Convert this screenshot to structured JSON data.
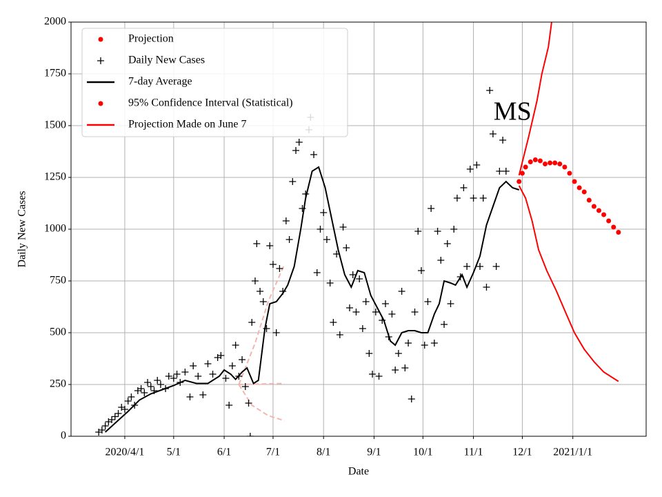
{
  "chart_data": {
    "type": "scatter",
    "xlabel": "Date",
    "ylabel": "Daily New Cases",
    "xlim": [
      "2020-02-28",
      "2021-02-15"
    ],
    "ylim": [
      0,
      2000
    ],
    "yticks": [
      0,
      250,
      500,
      750,
      1000,
      1250,
      1500,
      1750,
      2000
    ],
    "xticks": [
      {
        "value": "2020-04-01",
        "label": "2020/4/1"
      },
      {
        "value": "2020-05-01",
        "label": "5/1"
      },
      {
        "value": "2020-06-01",
        "label": "6/1"
      },
      {
        "value": "2020-07-01",
        "label": "7/1"
      },
      {
        "value": "2020-08-01",
        "label": "8/1"
      },
      {
        "value": "2020-09-01",
        "label": "9/1"
      },
      {
        "value": "2020-10-01",
        "label": "10/1"
      },
      {
        "value": "2020-11-01",
        "label": "11/1"
      },
      {
        "value": "2020-12-01",
        "label": "12/1"
      },
      {
        "value": "2021-01-01",
        "label": "2021/1/1"
      }
    ],
    "grid": true,
    "legend": "upper left",
    "annotations": [
      {
        "text": "MS",
        "x": "2020-11-25",
        "y": 1557
      }
    ],
    "series": [
      {
        "name": "Projection",
        "color": "#ff0000",
        "marker": "dot",
        "x": [
          "2020-11-29",
          "2020-12-01",
          "2020-12-03",
          "2020-12-06",
          "2020-12-09",
          "2020-12-12",
          "2020-12-15",
          "2020-12-18",
          "2020-12-21",
          "2020-12-24",
          "2020-12-27",
          "2020-12-30",
          "2021-01-02",
          "2021-01-05",
          "2021-01-08",
          "2021-01-11",
          "2021-01-14",
          "2021-01-17",
          "2021-01-20",
          "2021-01-23",
          "2021-01-26",
          "2021-01-29"
        ],
        "values": [
          1230,
          1270,
          1300,
          1325,
          1335,
          1330,
          1315,
          1320,
          1320,
          1315,
          1300,
          1270,
          1230,
          1200,
          1180,
          1140,
          1110,
          1090,
          1070,
          1040,
          1010,
          985
        ]
      },
      {
        "name": "Daily New Cases",
        "color": "#000000",
        "marker": "plus",
        "x": [
          "2020-03-16",
          "2020-03-18",
          "2020-03-20",
          "2020-03-22",
          "2020-03-24",
          "2020-03-26",
          "2020-03-28",
          "2020-03-30",
          "2020-04-01",
          "2020-04-03",
          "2020-04-05",
          "2020-04-07",
          "2020-04-09",
          "2020-04-11",
          "2020-04-13",
          "2020-04-15",
          "2020-04-17",
          "2020-04-19",
          "2020-04-21",
          "2020-04-23",
          "2020-04-26",
          "2020-04-28",
          "2020-05-01",
          "2020-05-03",
          "2020-05-05",
          "2020-05-08",
          "2020-05-11",
          "2020-05-13",
          "2020-05-16",
          "2020-05-19",
          "2020-05-22",
          "2020-05-25",
          "2020-05-28",
          "2020-05-30",
          "2020-06-02",
          "2020-06-04",
          "2020-06-06",
          "2020-06-08",
          "2020-06-10",
          "2020-06-12",
          "2020-06-14",
          "2020-06-16",
          "2020-06-17",
          "2020-06-18",
          "2020-06-20",
          "2020-06-21",
          "2020-06-23",
          "2020-06-25",
          "2020-06-27",
          "2020-06-29",
          "2020-07-01",
          "2020-07-03",
          "2020-07-05",
          "2020-07-07",
          "2020-07-09",
          "2020-07-11",
          "2020-07-13",
          "2020-07-15",
          "2020-07-17",
          "2020-07-19",
          "2020-07-21",
          "2020-07-23",
          "2020-07-24",
          "2020-07-26",
          "2020-07-28",
          "2020-07-30",
          "2020-08-01",
          "2020-08-03",
          "2020-08-05",
          "2020-08-07",
          "2020-08-09",
          "2020-08-11",
          "2020-08-13",
          "2020-08-15",
          "2020-08-17",
          "2020-08-19",
          "2020-08-21",
          "2020-08-23",
          "2020-08-25",
          "2020-08-27",
          "2020-08-29",
          "2020-08-31",
          "2020-09-02",
          "2020-09-04",
          "2020-09-06",
          "2020-09-08",
          "2020-09-10",
          "2020-09-12",
          "2020-09-14",
          "2020-09-16",
          "2020-09-18",
          "2020-09-20",
          "2020-09-22",
          "2020-09-24",
          "2020-09-26",
          "2020-09-28",
          "2020-09-30",
          "2020-10-02",
          "2020-10-04",
          "2020-10-06",
          "2020-10-08",
          "2020-10-10",
          "2020-10-12",
          "2020-10-14",
          "2020-10-16",
          "2020-10-18",
          "2020-10-20",
          "2020-10-22",
          "2020-10-24",
          "2020-10-26",
          "2020-10-28",
          "2020-10-30",
          "2020-11-01",
          "2020-11-03",
          "2020-11-05",
          "2020-11-07",
          "2020-11-09",
          "2020-11-11",
          "2020-11-13",
          "2020-11-15",
          "2020-11-17",
          "2020-11-19",
          "2020-11-21"
        ],
        "values": [
          20,
          30,
          50,
          70,
          80,
          95,
          110,
          140,
          130,
          170,
          190,
          150,
          220,
          230,
          210,
          260,
          240,
          220,
          270,
          250,
          230,
          290,
          280,
          300,
          260,
          310,
          190,
          340,
          290,
          200,
          350,
          300,
          380,
          390,
          280,
          150,
          340,
          440,
          290,
          370,
          240,
          160,
          0,
          550,
          750,
          930,
          700,
          650,
          520,
          920,
          830,
          500,
          810,
          700,
          1040,
          950,
          1230,
          1380,
          1420,
          1100,
          1170,
          1480,
          1540,
          1360,
          790,
          1000,
          1080,
          950,
          740,
          550,
          880,
          490,
          1010,
          910,
          620,
          780,
          600,
          760,
          520,
          650,
          400,
          300,
          600,
          290,
          560,
          640,
          480,
          590,
          320,
          400,
          700,
          330,
          450,
          180,
          600,
          990,
          800,
          440,
          650,
          1100,
          450,
          990,
          850,
          540,
          930,
          640,
          1000,
          1150,
          770,
          1200,
          820,
          1290,
          1150,
          1310,
          820,
          1150,
          720,
          1670,
          1460,
          820,
          1280,
          1430,
          1280
        ]
      },
      {
        "name": "7-day Average",
        "color": "#000000",
        "marker": "line",
        "x": [
          "2020-03-20",
          "2020-03-27",
          "2020-04-03",
          "2020-04-10",
          "2020-04-17",
          "2020-04-24",
          "2020-05-01",
          "2020-05-08",
          "2020-05-15",
          "2020-05-22",
          "2020-05-29",
          "2020-06-01",
          "2020-06-05",
          "2020-06-08",
          "2020-06-12",
          "2020-06-15",
          "2020-06-19",
          "2020-06-22",
          "2020-06-26",
          "2020-06-29",
          "2020-07-03",
          "2020-07-07",
          "2020-07-10",
          "2020-07-14",
          "2020-07-18",
          "2020-07-21",
          "2020-07-25",
          "2020-07-29",
          "2020-08-02",
          "2020-08-06",
          "2020-08-10",
          "2020-08-14",
          "2020-08-18",
          "2020-08-22",
          "2020-08-26",
          "2020-08-30",
          "2020-09-03",
          "2020-09-07",
          "2020-09-11",
          "2020-09-14",
          "2020-09-18",
          "2020-09-22",
          "2020-09-26",
          "2020-09-30",
          "2020-10-04",
          "2020-10-08",
          "2020-10-11",
          "2020-10-14",
          "2020-10-18",
          "2020-10-21",
          "2020-10-25",
          "2020-10-28",
          "2020-11-01",
          "2020-11-05",
          "2020-11-09",
          "2020-11-13",
          "2020-11-17",
          "2020-11-21",
          "2020-11-25",
          "2020-11-29"
        ],
        "values": [
          20,
          70,
          120,
          175,
          205,
          225,
          245,
          270,
          255,
          255,
          290,
          320,
          300,
          275,
          310,
          330,
          255,
          270,
          520,
          640,
          650,
          690,
          730,
          820,
          1000,
          1150,
          1280,
          1300,
          1200,
          1050,
          900,
          780,
          720,
          800,
          790,
          680,
          620,
          560,
          460,
          440,
          500,
          510,
          510,
          500,
          500,
          590,
          640,
          750,
          740,
          730,
          780,
          720,
          790,
          870,
          1020,
          1110,
          1200,
          1230,
          1200,
          1190
        ]
      },
      {
        "name": "95% Confidence Interval (Statistical)",
        "color": "#ff0000",
        "marker": "dot",
        "x": [],
        "values": []
      },
      {
        "name": "Projection Made on June 7",
        "color": "#ff0000",
        "marker": "line",
        "x": [
          "2020-11-29",
          "2020-12-05",
          "2020-12-10",
          "2020-12-13",
          "2020-12-17",
          "2020-12-19"
        ],
        "values": [
          1260,
          1450,
          1620,
          1750,
          1880,
          2000
        ]
      },
      {
        "color": "#ff0000",
        "marker": "line",
        "x": [
          "2020-11-29",
          "2020-12-03",
          "2020-12-07",
          "2020-12-11",
          "2020-12-16",
          "2020-12-22",
          "2020-12-28",
          "2021-01-02",
          "2021-01-08",
          "2021-01-14",
          "2021-01-20",
          "2021-01-29"
        ],
        "values": [
          1210,
          1150,
          1040,
          900,
          800,
          700,
          590,
          500,
          420,
          360,
          310,
          265
        ]
      },
      {
        "color": "#f4b5ad",
        "marker": "dashed",
        "x": [
          "2020-06-10",
          "2020-06-20",
          "2020-06-28",
          "2020-07-08"
        ],
        "values": [
          250,
          450,
          650,
          830
        ]
      },
      {
        "color": "#f4b5ad",
        "marker": "dashed",
        "x": [
          "2020-06-10",
          "2020-07-08"
        ],
        "values": [
          250,
          255
        ]
      },
      {
        "color": "#f4b5ad",
        "marker": "dashed",
        "x": [
          "2020-06-10",
          "2020-06-18",
          "2020-06-28",
          "2020-07-08"
        ],
        "values": [
          250,
          150,
          100,
          75
        ]
      }
    ]
  }
}
